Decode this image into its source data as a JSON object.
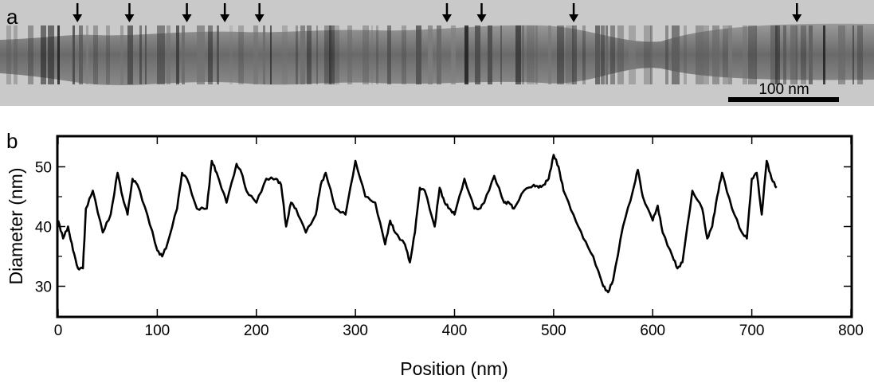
{
  "figure": {
    "panel_a_label": "a",
    "panel_b_label": "b",
    "scale_bar_label": "100 nm",
    "micrograph_description_icon": "tem-nanowire-image",
    "arrow_positions_nm": [
      20,
      68,
      121,
      156,
      188,
      361,
      393,
      478,
      684
    ]
  },
  "chart_data": {
    "type": "line",
    "xlabel": "Position (nm)",
    "ylabel": "Diameter (nm)",
    "xlim": [
      0,
      800
    ],
    "ylim": [
      25,
      55
    ],
    "xticks": [
      0,
      100,
      200,
      300,
      400,
      500,
      600,
      700,
      800
    ],
    "yticks": [
      30,
      40,
      50
    ],
    "grid": false,
    "series": [
      {
        "x": [
          0,
          5,
          10,
          15,
          20,
          25,
          28,
          35,
          45,
          53,
          60,
          65,
          70,
          75,
          80,
          90,
          100,
          105,
          110,
          120,
          125,
          130,
          140,
          150,
          155,
          160,
          170,
          180,
          185,
          190,
          200,
          210,
          220,
          225,
          230,
          235,
          240,
          250,
          260,
          265,
          270,
          280,
          290,
          300,
          310,
          320,
          330,
          335,
          340,
          350,
          355,
          360,
          365,
          370,
          380,
          385,
          390,
          395,
          400,
          410,
          420,
          425,
          430,
          440,
          450,
          455,
          460,
          470,
          480,
          485,
          490,
          495,
          500,
          505,
          510,
          520,
          530,
          540,
          550,
          555,
          560,
          570,
          580,
          585,
          590,
          600,
          605,
          610,
          620,
          625,
          630,
          640,
          650,
          655,
          660,
          665,
          670,
          680,
          690,
          695,
          700,
          705,
          710,
          715,
          720,
          725
        ],
        "y": [
          41,
          38,
          40,
          36,
          33,
          33,
          43,
          46,
          39,
          42,
          49,
          45,
          42,
          48,
          47,
          42,
          36,
          35,
          37,
          43,
          49,
          48,
          43,
          43,
          51,
          49,
          44,
          50.5,
          49,
          46,
          44,
          48,
          48,
          47,
          40,
          44,
          43,
          39,
          42,
          47,
          49,
          43,
          42,
          51,
          45,
          44,
          37,
          41,
          39,
          37,
          34,
          39,
          46.5,
          46,
          40,
          46.5,
          44,
          43,
          42,
          48,
          43,
          43,
          44,
          48.5,
          44,
          44,
          43,
          46,
          47,
          46.5,
          47,
          48,
          52,
          50,
          46,
          42,
          38,
          35,
          30,
          29,
          31,
          40,
          46,
          49.5,
          45,
          41,
          43.5,
          39,
          35,
          33,
          34,
          46,
          43,
          38,
          40,
          45,
          49,
          43,
          39,
          38,
          48,
          49,
          42,
          51,
          48,
          46.5
        ]
      }
    ]
  }
}
